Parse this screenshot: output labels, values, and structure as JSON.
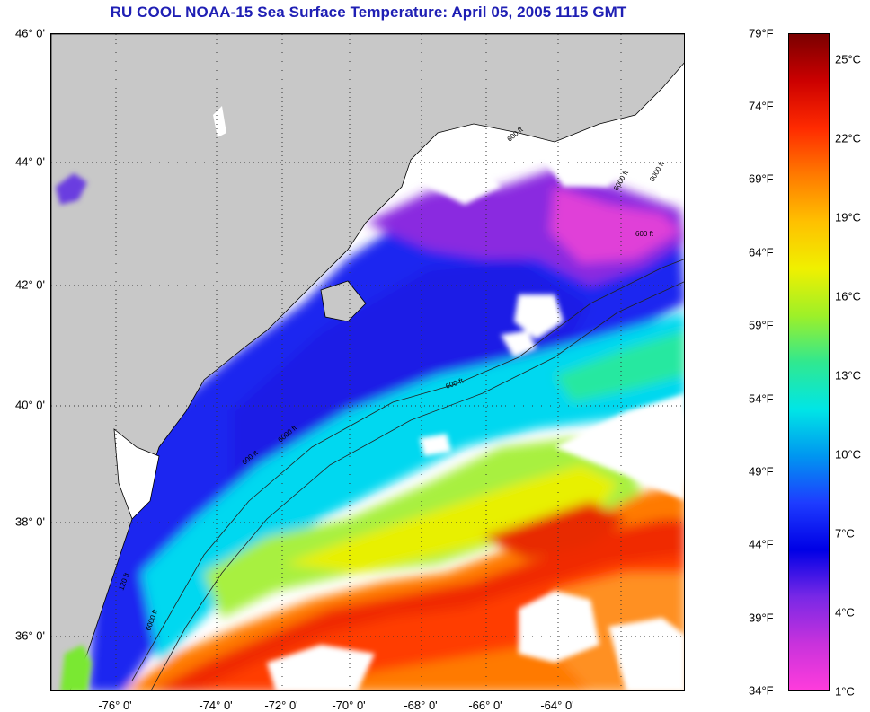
{
  "title": "RU COOL  NOAA-15  Sea Surface Temperature:  April 05, 2005 1115 GMT",
  "map": {
    "lat_ticks": [
      "46° 0'",
      "44° 0'",
      "42° 0'",
      "40° 0'",
      "38° 0'",
      "36° 0'"
    ],
    "lon_ticks": [
      "-76° 0'",
      "-74° 0'",
      "-72° 0'",
      "-70° 0'",
      "-68° 0'",
      "-66° 0'",
      "-64° 0'"
    ],
    "contour_labels": [
      "600 ft",
      "6000 ft",
      "600 ft",
      "6000 ft",
      "600 ft",
      "6000 ft",
      "600 ft",
      "6000 ft",
      "120 ft"
    ],
    "colors": {
      "land": "#c8c8c8",
      "cloud": "#ffffff",
      "grid": "#333333"
    }
  },
  "colorbar": {
    "fahrenheit": [
      "79°F",
      "74°F",
      "69°F",
      "64°F",
      "59°F",
      "54°F",
      "49°F",
      "44°F",
      "39°F",
      "34°F"
    ],
    "celsius": [
      "25°C",
      "22°C",
      "19°C",
      "16°C",
      "13°C",
      "10°C",
      "7°C",
      "4°C",
      "1°C"
    ],
    "gradient": [
      "#7a0000",
      "#cc0000",
      "#ff2a00",
      "#ff7a00",
      "#ffc000",
      "#f0f000",
      "#9ef028",
      "#30e890",
      "#00e6e6",
      "#0096f0",
      "#1e3cff",
      "#0000e6",
      "#7828e6",
      "#c832dc",
      "#ff3cdc"
    ]
  }
}
